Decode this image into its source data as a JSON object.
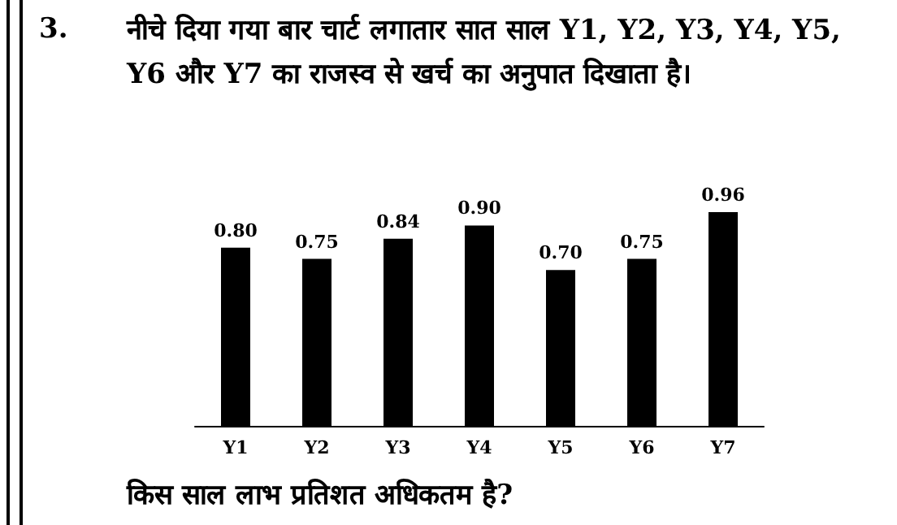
{
  "chart_data": {
    "type": "bar",
    "title": "नीचे दिया गया बार चार्ट लगातार सात साल Y1, Y2, Y3, Y4, Y5, Y6 और Y7 का राजस्व से खर्च का अनुपात दिखाता है।",
    "categories": [
      "Y1",
      "Y2",
      "Y3",
      "Y4",
      "Y5",
      "Y6",
      "Y7"
    ],
    "values": [
      0.8,
      0.75,
      0.84,
      0.9,
      0.7,
      0.75,
      0.96
    ],
    "color": "#000000",
    "value_labels": [
      "0.80",
      "0.75",
      "0.84",
      "0.90",
      "0.70",
      "0.75",
      "0.96"
    ],
    "annotations": [
      "3.",
      "किस साल लाभ प्रतिशत अधिकतम है?"
    ]
  }
}
